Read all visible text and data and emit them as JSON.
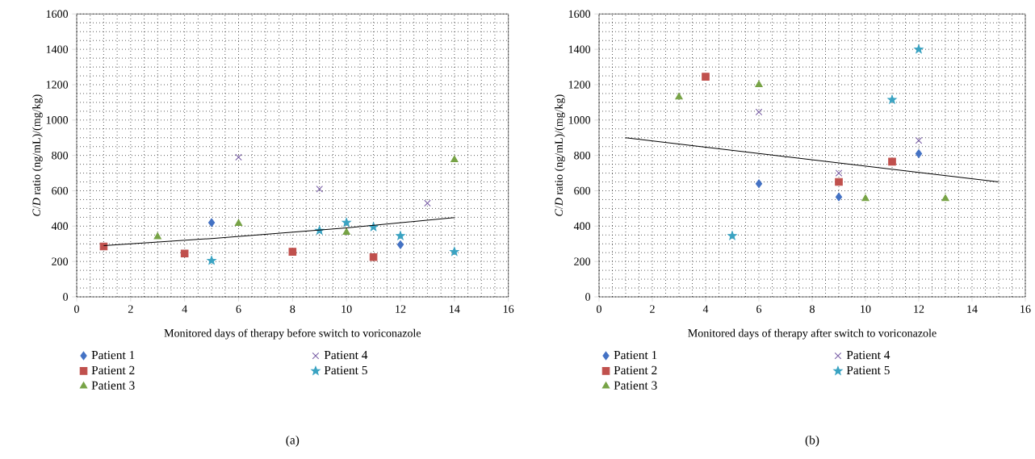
{
  "chart_data": [
    {
      "type": "scatter",
      "xlabel": "Monitored days of therapy before switch to voriconazole",
      "ylabel": "*C*/*D* ratio (ng/mL)/(mg/kg)",
      "annotations": [
        "(a)"
      ],
      "xlim": [
        0,
        16
      ],
      "ylim": [
        0,
        1600
      ],
      "xticks": [
        0,
        2,
        4,
        6,
        8,
        10,
        12,
        14,
        16
      ],
      "yticks": [
        0,
        200,
        400,
        600,
        800,
        1000,
        1200,
        1400,
        1600
      ],
      "grid": true,
      "legend": "bottom",
      "series": [
        {
          "name": "Patient 1",
          "color": "#4472c4",
          "marker": "diamond",
          "x": [
            5,
            12
          ],
          "values": [
            420,
            295
          ]
        },
        {
          "name": "Patient 2",
          "color": "#c0504d",
          "marker": "square",
          "x": [
            1,
            4,
            8,
            11
          ],
          "values": [
            285,
            245,
            255,
            225
          ]
        },
        {
          "name": "Patient 3",
          "color": "#77a346",
          "marker": "triangle",
          "x": [
            3,
            6,
            10,
            14
          ],
          "values": [
            340,
            415,
            365,
            775
          ]
        },
        {
          "name": "Patient 4",
          "color": "#7a5fa6",
          "marker": "cross",
          "x": [
            6,
            9,
            13
          ],
          "values": [
            790,
            610,
            530
          ]
        },
        {
          "name": "Patient 5",
          "color": "#3aa3c2",
          "marker": "star",
          "x": [
            5,
            9,
            10,
            11,
            12,
            14
          ],
          "values": [
            205,
            375,
            420,
            395,
            345,
            255
          ]
        },
        {
          "type": "line",
          "color": "#000000",
          "marker": "none",
          "x": [
            1,
            5,
            10,
            14
          ],
          "values": [
            290,
            330,
            390,
            448
          ]
        }
      ]
    },
    {
      "type": "scatter",
      "xlabel": "Monitored days of therapy after switch to voriconazole",
      "ylabel": "*C*/*D* ratio (ng/mL)/(mg/kg)",
      "annotations": [
        "(b)"
      ],
      "xlim": [
        0,
        16
      ],
      "ylim": [
        0,
        1600
      ],
      "xticks": [
        0,
        2,
        4,
        6,
        8,
        10,
        12,
        14,
        16
      ],
      "yticks": [
        0,
        200,
        400,
        600,
        800,
        1000,
        1200,
        1400,
        1600
      ],
      "grid": true,
      "legend": "bottom",
      "series": [
        {
          "name": "Patient 1",
          "color": "#4472c4",
          "marker": "diamond",
          "x": [
            6,
            9,
            12
          ],
          "values": [
            640,
            565,
            810
          ]
        },
        {
          "name": "Patient 2",
          "color": "#c0504d",
          "marker": "square",
          "x": [
            4,
            9,
            11
          ],
          "values": [
            1245,
            650,
            765
          ]
        },
        {
          "name": "Patient 3",
          "color": "#77a346",
          "marker": "triangle",
          "x": [
            3,
            6,
            10,
            13
          ],
          "values": [
            1130,
            1200,
            555,
            555
          ]
        },
        {
          "name": "Patient 4",
          "color": "#7a5fa6",
          "marker": "cross",
          "x": [
            6,
            9,
            12
          ],
          "values": [
            1045,
            700,
            885
          ]
        },
        {
          "name": "Patient 5",
          "color": "#3aa3c2",
          "marker": "star",
          "x": [
            5,
            11,
            12
          ],
          "values": [
            345,
            1115,
            1400
          ]
        },
        {
          "type": "line",
          "color": "#000000",
          "marker": "none",
          "x": [
            1,
            15
          ],
          "values": [
            900,
            650
          ]
        }
      ]
    }
  ]
}
